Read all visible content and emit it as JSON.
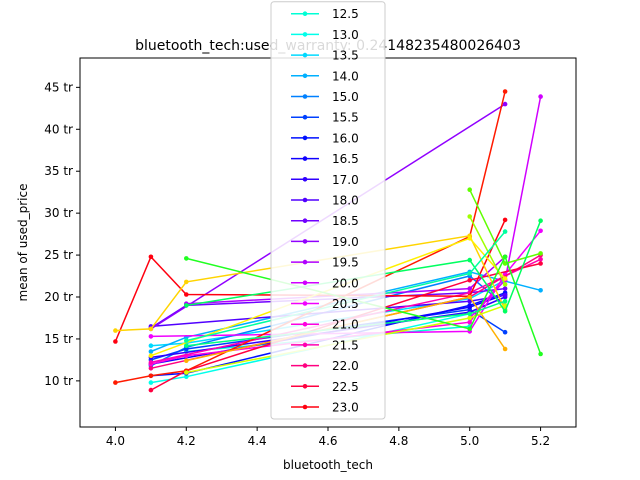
{
  "chart_data": {
    "type": "line",
    "title": "bluetooth_tech:used_warranty: 0.24148235480026403",
    "xlabel": "bluetooth_tech",
    "ylabel": "mean of used_price",
    "xlim": [
      3.9,
      5.3
    ],
    "ylim": [
      4.5,
      48.5
    ],
    "x_ticks": [
      "4.0",
      "4.2",
      "4.4",
      "4.6",
      "4.8",
      "5.0",
      "5.2"
    ],
    "x_tick_values": [
      4.0,
      4.2,
      4.4,
      4.6,
      4.8,
      5.0,
      5.2
    ],
    "y_ticks": [
      "10 tr",
      "15 tr",
      "20 tr",
      "25 tr",
      "30 tr",
      "35 tr",
      "40 tr",
      "45 tr"
    ],
    "y_tick_values": [
      10,
      15,
      20,
      25,
      30,
      35,
      40,
      45
    ],
    "legend_position": "top-center",
    "grid": false,
    "series": [
      {
        "name": "12.5",
        "color": "#00ffd5",
        "points": [
          [
            4.2,
            13.5
          ],
          [
            5.0,
            16.5
          ]
        ]
      },
      {
        "name": "13.0",
        "color": "#00ffea",
        "points": [
          [
            4.1,
            9.8
          ],
          [
            4.2,
            10.5
          ],
          [
            5.0,
            18.0
          ]
        ]
      },
      {
        "name": "13.5",
        "color": "#00d9ff",
        "points": [
          [
            4.1,
            14.2
          ],
          [
            4.2,
            14.5
          ],
          [
            5.0,
            19.8
          ],
          [
            5.1,
            22.0
          ]
        ]
      },
      {
        "name": "14.0",
        "color": "#00b0ff",
        "points": [
          [
            4.1,
            13.5
          ],
          [
            4.2,
            15.2
          ],
          [
            5.0,
            23.0
          ],
          [
            5.2,
            20.8
          ]
        ]
      },
      {
        "name": "15.0",
        "color": "#0080ff",
        "points": [
          [
            4.1,
            11.8
          ],
          [
            4.2,
            14.0
          ],
          [
            5.0,
            22.5
          ],
          [
            5.1,
            19.0
          ]
        ]
      },
      {
        "name": "15.5",
        "color": "#0040ff",
        "points": [
          [
            4.1,
            12.5
          ],
          [
            4.2,
            13.8
          ],
          [
            5.0,
            18.5
          ],
          [
            5.1,
            15.8
          ]
        ]
      },
      {
        "name": "16.0",
        "color": "#0010ff",
        "points": [
          [
            4.1,
            10.6
          ],
          [
            4.2,
            10.9
          ],
          [
            5.0,
            19.0
          ],
          [
            5.1,
            20.5
          ]
        ]
      },
      {
        "name": "16.5",
        "color": "#1000ff",
        "points": [
          [
            4.1,
            12.0
          ],
          [
            5.0,
            18.8
          ],
          [
            5.1,
            20.3
          ]
        ]
      },
      {
        "name": "17.0",
        "color": "#3000ff",
        "points": [
          [
            4.1,
            12.8
          ],
          [
            5.0,
            18.2
          ],
          [
            5.1,
            20.0
          ]
        ]
      },
      {
        "name": "18.0",
        "color": "#5000ff",
        "points": [
          [
            4.1,
            16.5
          ],
          [
            5.0,
            19.5
          ],
          [
            5.1,
            20.2
          ]
        ]
      },
      {
        "name": "18.5",
        "color": "#7000ff",
        "points": [
          [
            4.1,
            16.3
          ],
          [
            4.2,
            19.0
          ],
          [
            5.0,
            20.5
          ],
          [
            5.1,
            21.0
          ]
        ]
      },
      {
        "name": "19.0",
        "color": "#9000ff",
        "points": [
          [
            4.1,
            16.2
          ],
          [
            5.1,
            43.0
          ]
        ]
      },
      {
        "name": "19.5",
        "color": "#b000ff",
        "points": [
          [
            4.2,
            19.2
          ],
          [
            5.0,
            21.0
          ],
          [
            5.1,
            24.8
          ]
        ]
      },
      {
        "name": "20.0",
        "color": "#d000ff",
        "points": [
          [
            5.0,
            17.5
          ],
          [
            5.1,
            22.0
          ],
          [
            5.2,
            43.9
          ]
        ]
      },
      {
        "name": "20.5",
        "color": "#f000ff",
        "points": [
          [
            4.1,
            15.3
          ],
          [
            5.0,
            15.9
          ],
          [
            5.1,
            22.7
          ],
          [
            5.2,
            27.9
          ]
        ]
      },
      {
        "name": "21.0",
        "color": "#ff00e0",
        "points": [
          [
            4.1,
            12.0
          ],
          [
            4.2,
            13.0
          ],
          [
            5.0,
            17.0
          ],
          [
            5.1,
            22.5
          ]
        ]
      },
      {
        "name": "21.5",
        "color": "#ff00b0",
        "points": [
          [
            4.1,
            12.2
          ],
          [
            5.0,
            20.5
          ],
          [
            5.2,
            24.5
          ]
        ]
      },
      {
        "name": "22.0",
        "color": "#ff0080",
        "points": [
          [
            4.1,
            11.5
          ],
          [
            5.0,
            20.0
          ],
          [
            5.2,
            25.0
          ]
        ]
      },
      {
        "name": "22.5",
        "color": "#ff0040",
        "points": [
          [
            4.1,
            8.9
          ],
          [
            4.2,
            11.2
          ],
          [
            5.0,
            22.0
          ],
          [
            5.2,
            24.0
          ]
        ]
      },
      {
        "name": "23.0",
        "color": "#ff0010",
        "points": [
          [
            4.0,
            14.7
          ],
          [
            4.1,
            24.8
          ],
          [
            4.2,
            20.3
          ],
          [
            5.0,
            20.1
          ],
          [
            5.1,
            29.2
          ]
        ]
      },
      {
        "name": "",
        "color": "#ff1a00",
        "points": [
          [
            4.0,
            9.8
          ],
          [
            4.1,
            10.6
          ],
          [
            4.2,
            11.2
          ],
          [
            5.0,
            27.2
          ],
          [
            5.1,
            44.5
          ]
        ]
      },
      {
        "name": "",
        "color": "#ffd400",
        "points": [
          [
            4.0,
            16.0
          ],
          [
            4.1,
            16.2
          ],
          [
            4.2,
            21.8
          ],
          [
            5.0,
            27.3
          ],
          [
            5.1,
            18.5
          ]
        ]
      },
      {
        "name": "",
        "color": "#fff000",
        "points": [
          [
            4.1,
            13.0
          ],
          [
            5.0,
            27.0
          ],
          [
            5.1,
            22.2
          ]
        ]
      },
      {
        "name": "",
        "color": "#ffb000",
        "points": [
          [
            4.2,
            12.4
          ],
          [
            5.0,
            20.0
          ],
          [
            5.1,
            13.8
          ]
        ]
      },
      {
        "name": "",
        "color": "#d4ff00",
        "points": [
          [
            4.2,
            11.0
          ],
          [
            5.0,
            17.5
          ],
          [
            5.1,
            19.0
          ]
        ]
      },
      {
        "name": "",
        "color": "#a0ff00",
        "points": [
          [
            5.0,
            29.6
          ],
          [
            5.1,
            21.5
          ]
        ]
      },
      {
        "name": "",
        "color": "#60ff00",
        "points": [
          [
            5.0,
            32.8
          ],
          [
            5.1,
            24.0
          ],
          [
            5.2,
            25.2
          ]
        ]
      },
      {
        "name": "",
        "color": "#20ff20",
        "points": [
          [
            4.2,
            24.6
          ],
          [
            5.0,
            16.2
          ],
          [
            5.1,
            24.8
          ],
          [
            5.2,
            13.2
          ]
        ]
      },
      {
        "name": "",
        "color": "#00ff60",
        "points": [
          [
            4.2,
            19.0
          ],
          [
            5.0,
            24.4
          ],
          [
            5.1,
            18.3
          ],
          [
            5.2,
            29.1
          ]
        ]
      },
      {
        "name": "",
        "color": "#00ffa0",
        "points": [
          [
            4.2,
            14.8
          ],
          [
            5.0,
            22.8
          ],
          [
            5.1,
            27.8
          ]
        ]
      },
      {
        "name": "",
        "color": "#00ff80",
        "points": [
          [
            4.2,
            14.2
          ],
          [
            5.0,
            18.0
          ],
          [
            5.1,
            19.5
          ]
        ]
      }
    ]
  }
}
